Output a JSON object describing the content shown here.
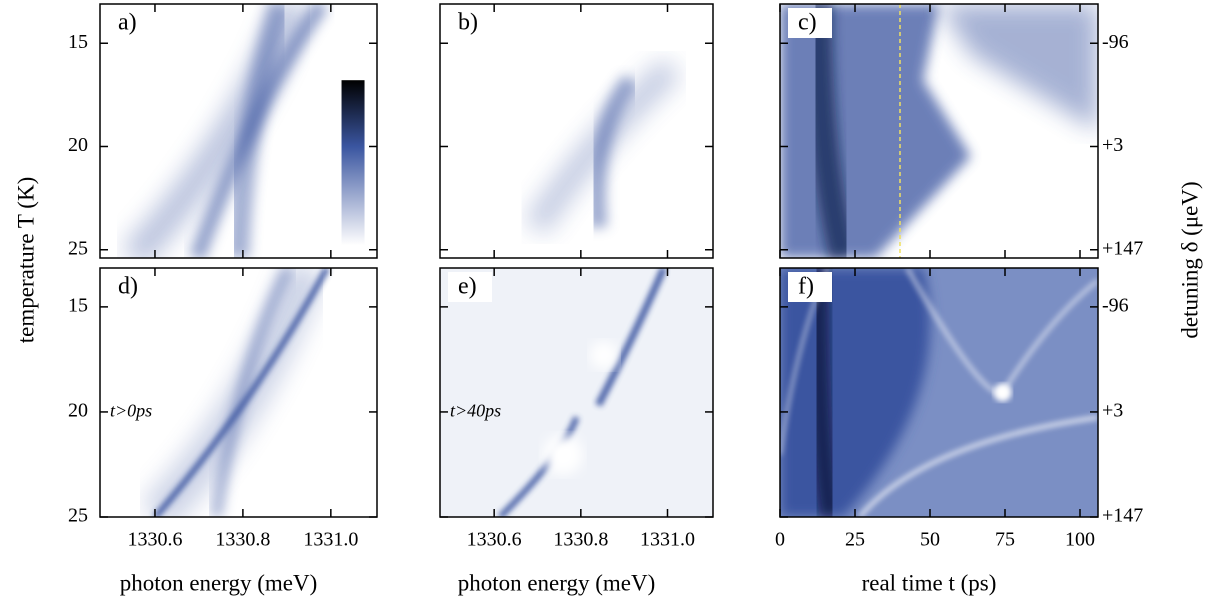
{
  "chart_data": {
    "type": "heatmap-grid",
    "ylabel": "temperature T (K)",
    "y2label": "detuning δ (μeV)",
    "colormap": [
      "#ffffff",
      "#3a55a0",
      "#000000"
    ],
    "panels": [
      {
        "label": "a)",
        "xlim": [
          1330.475,
          1331.105
        ],
        "xticks": [
          1330.6,
          1330.8,
          1331
        ],
        "ylim": [
          25.4,
          13.1
        ],
        "yticks": [
          15,
          20,
          25
        ]
      },
      {
        "label": "b)",
        "xlim": [
          1330.475,
          1331.105
        ],
        "xticks": [
          1330.6,
          1330.8,
          1331
        ],
        "ylim": [
          25.4,
          13.1
        ],
        "yticks": [
          15,
          20,
          25
        ]
      },
      {
        "label": "c)",
        "xlim": [
          0,
          106
        ],
        "xticks": [
          0,
          25,
          50,
          75,
          100
        ],
        "ylim": [
          25.4,
          13.1
        ],
        "yticks": [
          15,
          20,
          25
        ],
        "y2ticks": [
          -96,
          {
            "value": 3,
            "label": "+3"
          },
          {
            "value": 147,
            "label": "+147"
          }
        ],
        "vline": 40,
        "vline_color": "#f0e060"
      },
      {
        "label": "d)",
        "xlim": [
          1330.475,
          1331.105
        ],
        "xticks": [
          1330.6,
          1330.8,
          {
            "value": 1331.0,
            "label": "1331.0"
          }
        ],
        "ylim": [
          25,
          13.15
        ],
        "yticks": [
          15,
          20,
          25
        ],
        "annotation": "t>0ps",
        "xlabel": "photon energy (meV)"
      },
      {
        "label": "e)",
        "xlim": [
          1330.475,
          1331.105
        ],
        "xticks": [
          1330.6,
          1330.8,
          {
            "value": 1331.0,
            "label": "1331.0"
          }
        ],
        "ylim": [
          25,
          13.15
        ],
        "yticks": [
          15,
          20,
          25
        ],
        "annotation": "t>40ps",
        "xlabel": "photon energy (meV)"
      },
      {
        "label": "f)",
        "xlim": [
          0,
          106
        ],
        "xticks": [
          0,
          25,
          50,
          75,
          100
        ],
        "ylim": [
          25,
          13.15
        ],
        "yticks": [
          15,
          20,
          25
        ],
        "y2ticks": [
          -96,
          {
            "value": 3,
            "label": "+3"
          },
          {
            "value": 147,
            "label": "+147"
          }
        ],
        "xlabel": "real time t (ps)"
      }
    ]
  }
}
